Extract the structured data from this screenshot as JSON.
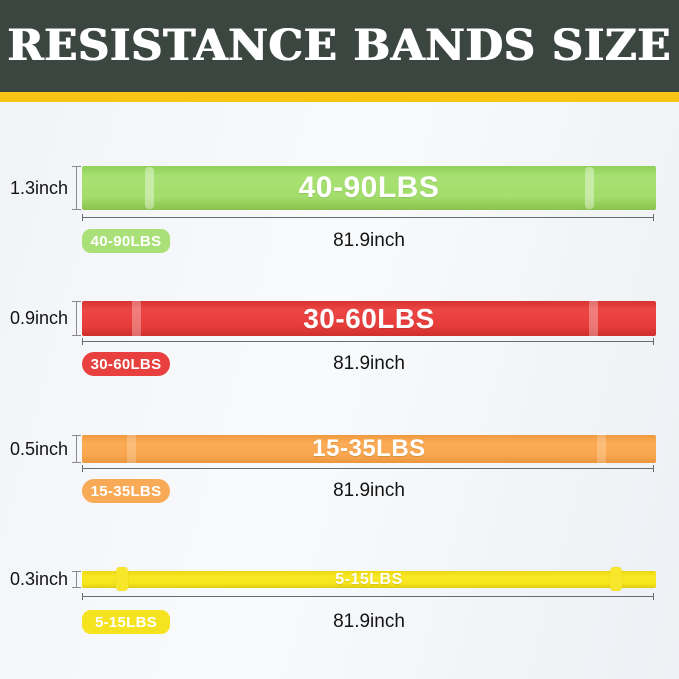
{
  "header": {
    "title": "RESISTANCE BANDS SIZE"
  },
  "theme": {
    "header_bg": "#3b4641",
    "accent_stripe": "#f8c515",
    "background": "#f4f6f8",
    "text_color": "#141414",
    "band_label_color": "#ffffff"
  },
  "bands": [
    {
      "name": "green-band",
      "color": "#9edb69",
      "thickness": "1.3inch",
      "resistance": "40-90LBS",
      "badge": "40-90LBS",
      "length": "81.9inch"
    },
    {
      "name": "red-band",
      "color": "#e63c3a",
      "thickness": "0.9inch",
      "resistance": "30-60LBS",
      "badge": "30-60LBS",
      "length": "81.9inch"
    },
    {
      "name": "orange-band",
      "color": "#f9a74f",
      "thickness": "0.5inch",
      "resistance": "15-35LBS",
      "badge": "15-35LBS",
      "length": "81.9inch"
    },
    {
      "name": "yellow-band",
      "color": "#f5e318",
      "thickness": "0.3inch",
      "resistance": "5-15LBS",
      "badge": "5-15LBS",
      "length": "81.9inch"
    }
  ]
}
